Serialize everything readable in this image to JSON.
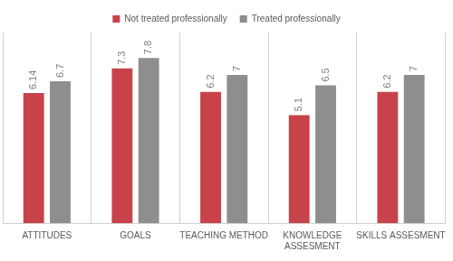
{
  "chart_data": {
    "type": "bar",
    "categories": [
      "ATTITUDES",
      "GOALS",
      "TEACHING METHOD",
      "KNOWLEDGE ASSESMENT",
      "SKILLS ASSESMENT"
    ],
    "series": [
      {
        "name": "Not treated professionally",
        "color": "#c8424a",
        "values": [
          6.14,
          7.3,
          6.2,
          5.1,
          6.2
        ]
      },
      {
        "name": "Treated professionally",
        "color": "#8e8e8e",
        "values": [
          6.7,
          7.8,
          7,
          6.5,
          7
        ]
      }
    ],
    "ylim": [
      0,
      9
    ],
    "grid": true,
    "legend": "top",
    "data_labels": true,
    "tick_labels": "x"
  }
}
